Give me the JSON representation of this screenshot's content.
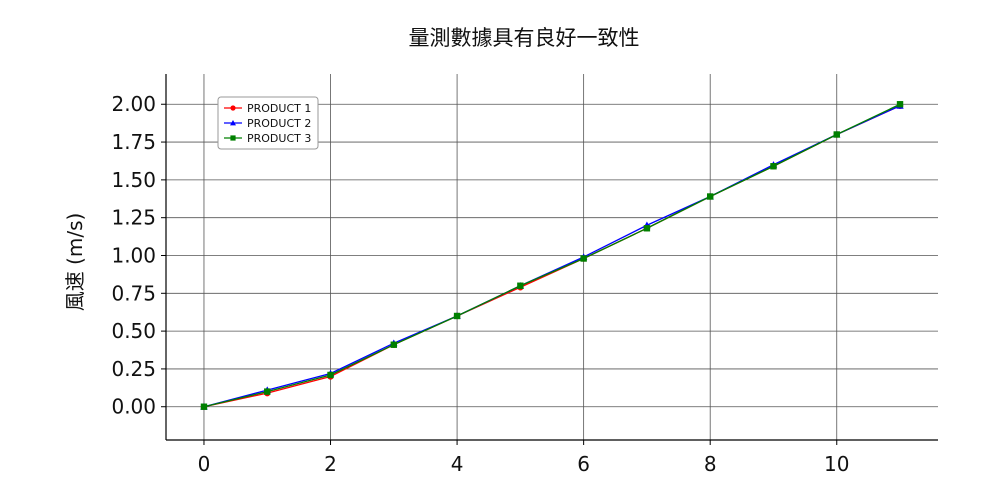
{
  "chart_data": {
    "type": "line",
    "title": "量測數據具有良好一致性",
    "xlabel": "",
    "ylabel": "風速 (m/s)",
    "xlim": [
      -0.6,
      11.6
    ],
    "ylim": [
      -0.22,
      2.2
    ],
    "x_ticks": [
      0,
      2,
      4,
      6,
      8,
      10
    ],
    "y_ticks": [
      0.0,
      0.25,
      0.5,
      0.75,
      1.0,
      1.25,
      1.5,
      1.75,
      2.0
    ],
    "x_tick_labels": [
      "0",
      "2",
      "4",
      "6",
      "8",
      "10"
    ],
    "y_tick_labels": [
      "0.00",
      "0.25",
      "0.50",
      "0.75",
      "1.00",
      "1.25",
      "1.50",
      "1.75",
      "2.00"
    ],
    "grid": true,
    "legend_position": "top-left",
    "series": [
      {
        "name": "PRODUCT 1",
        "color": "#ff0000",
        "marker": "circle",
        "x": [
          0,
          1,
          2,
          3,
          4,
          5,
          6,
          7,
          8,
          9,
          10,
          11
        ],
        "y": [
          0.0,
          0.09,
          0.2,
          0.41,
          0.6,
          0.79,
          0.98,
          1.18,
          1.39,
          1.59,
          1.8,
          1.99
        ]
      },
      {
        "name": "PRODUCT 2",
        "color": "#0000ff",
        "marker": "triangle",
        "x": [
          0,
          1,
          2,
          3,
          4,
          5,
          6,
          7,
          8,
          9,
          10,
          11
        ],
        "y": [
          0.0,
          0.11,
          0.22,
          0.42,
          0.6,
          0.8,
          0.99,
          1.2,
          1.39,
          1.6,
          1.8,
          1.99
        ]
      },
      {
        "name": "PRODUCT 3",
        "color": "#008000",
        "marker": "square",
        "x": [
          0,
          1,
          2,
          3,
          4,
          5,
          6,
          7,
          8,
          9,
          10,
          11
        ],
        "y": [
          0.0,
          0.1,
          0.21,
          0.41,
          0.6,
          0.8,
          0.98,
          1.18,
          1.39,
          1.59,
          1.8,
          2.0
        ]
      }
    ]
  }
}
